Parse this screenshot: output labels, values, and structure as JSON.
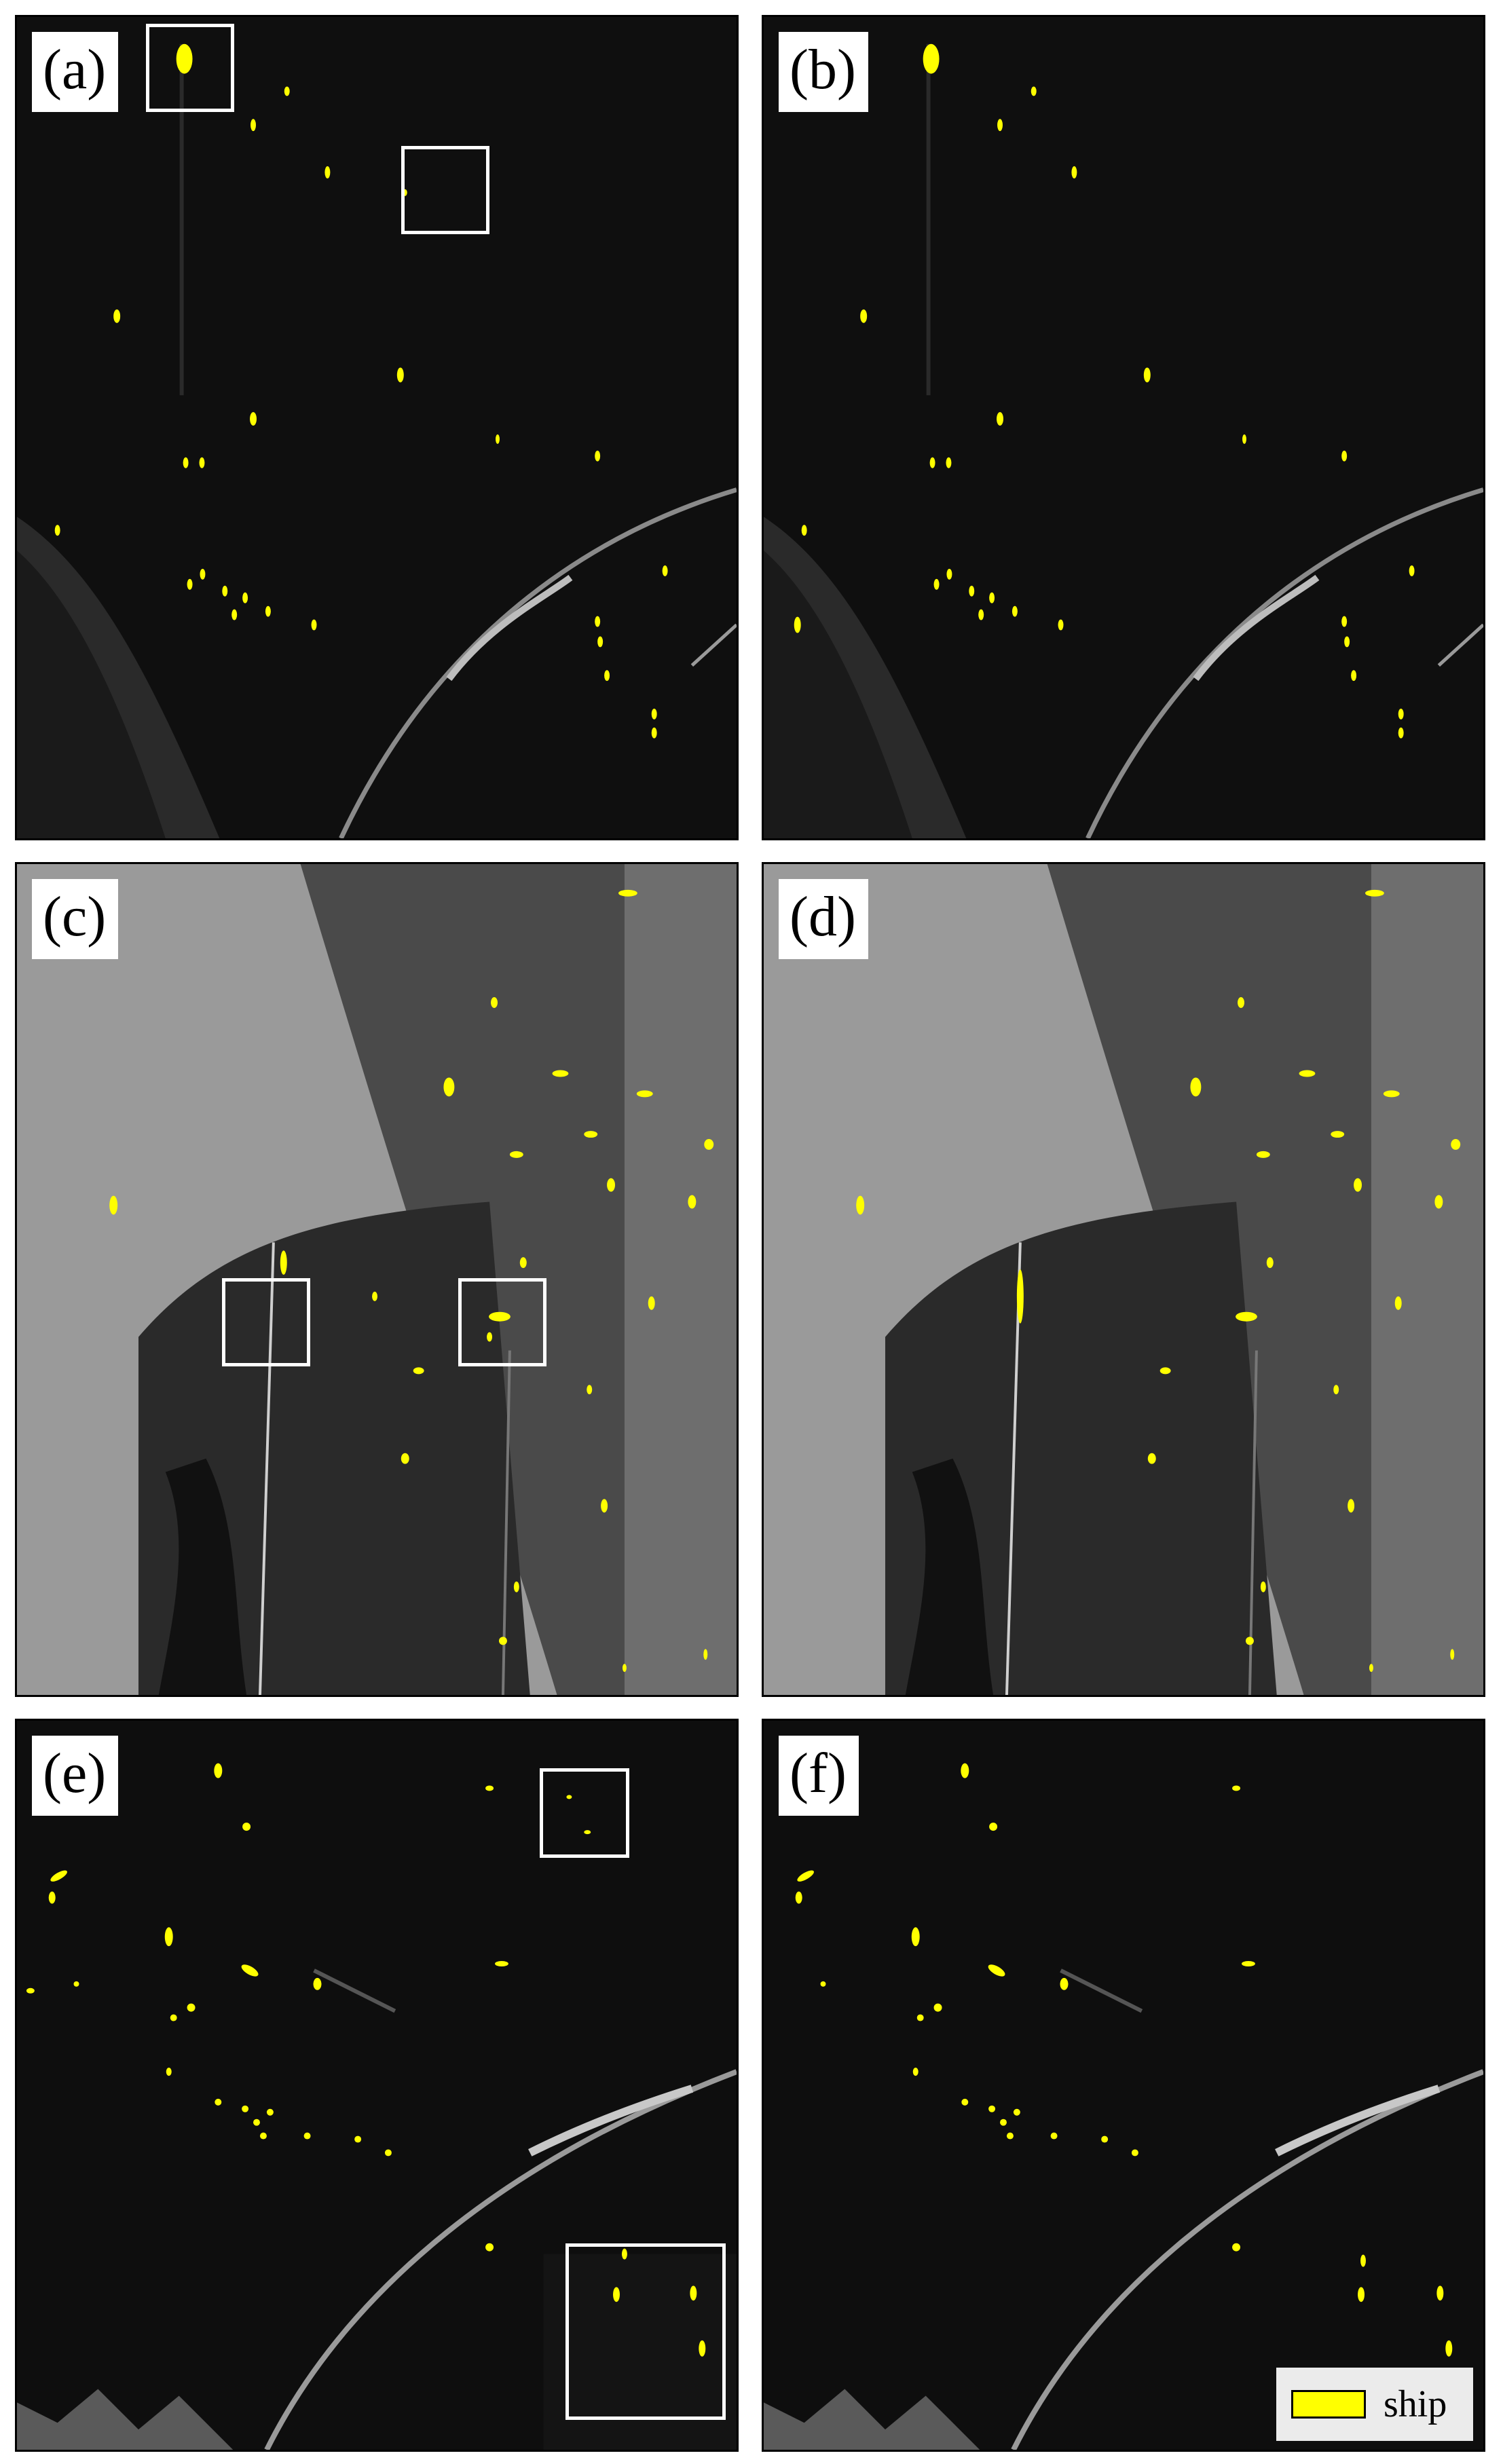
{
  "panels": [
    {
      "label": "(a)"
    },
    {
      "label": "(b)"
    },
    {
      "label": "(c)"
    },
    {
      "label": "(d)"
    },
    {
      "label": "(e)"
    },
    {
      "label": "(f)"
    }
  ],
  "legend": {
    "label": "ship",
    "color": "#ffff00"
  },
  "colors": {
    "ship": "#ffff00",
    "highlight_box": "#ffffff",
    "dark_sea": "#0e0e0e",
    "gray_sea": "#7a7a7a"
  }
}
